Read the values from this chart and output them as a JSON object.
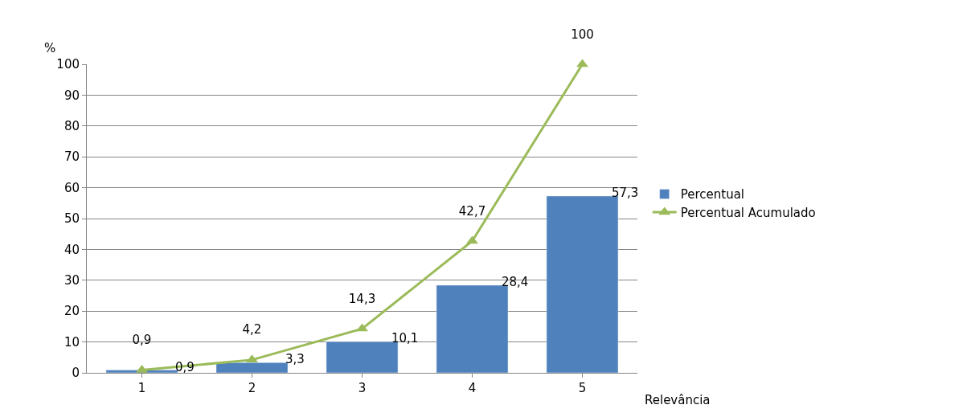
{
  "chart_data": {
    "type": "bar",
    "xlabel": "Relevância",
    "ylabel": "%",
    "categories": [
      "1",
      "2",
      "3",
      "4",
      "5"
    ],
    "series": [
      {
        "name": "Percentual",
        "color": "#4f81bd",
        "values": [
          0.9,
          3.3,
          10.1,
          28.4,
          57.3
        ],
        "value_labels": [
          "0,9",
          "3,3",
          "10,1",
          "28,4",
          "57,3"
        ]
      },
      {
        "name": "Percentual Acumulado",
        "type": "line",
        "color": "#9bbb59",
        "marker": "triangle",
        "values": [
          0.9,
          4.2,
          14.3,
          42.7,
          100
        ],
        "value_labels": [
          "0,9",
          "4,2",
          "14,3",
          "42,7",
          "100"
        ]
      }
    ],
    "ylim": [
      0,
      100
    ],
    "yticks": [
      0,
      10,
      20,
      30,
      40,
      50,
      60,
      70,
      80,
      90,
      100
    ],
    "grid": "y",
    "legend": "right"
  }
}
